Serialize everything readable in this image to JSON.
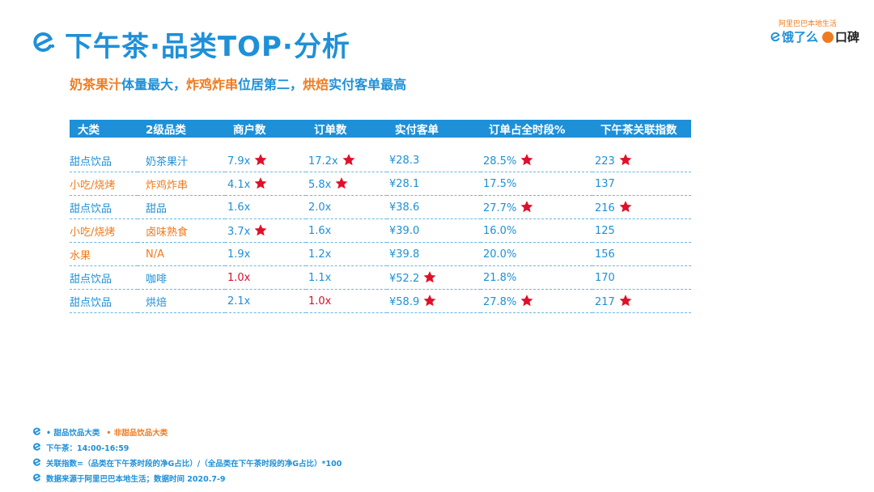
{
  "header": {
    "title": "下午茶·品类TOP·分析",
    "subtitle_parts": [
      {
        "text": "奶茶果汁",
        "color": "orange"
      },
      {
        "text": "体量最大，",
        "color": "blue"
      },
      {
        "text": "炸鸡炸串",
        "color": "orange"
      },
      {
        "text": "位居第二，",
        "color": "blue"
      },
      {
        "text": "烘焙",
        "color": "orange"
      },
      {
        "text": "实付客单最高",
        "color": "blue"
      }
    ]
  },
  "brand": {
    "tagline": "阿里巴巴本地生活",
    "ele_name": "饿了么",
    "koubei_name": "口碑"
  },
  "table": {
    "columns": [
      "大类",
      "2级品类",
      "商户数",
      "订单数",
      "实付客单",
      "订单占全时段%",
      "下午茶关联指数"
    ],
    "rows": [
      {
        "cells": [
          {
            "text": "甜点饮品",
            "color": "blue",
            "star": false
          },
          {
            "text": "奶茶果汁",
            "color": "blue",
            "star": false
          },
          {
            "text": "7.9x",
            "color": "blue",
            "star": true
          },
          {
            "text": "17.2x",
            "color": "blue",
            "star": true
          },
          {
            "text": "¥28.3",
            "color": "blue",
            "star": false
          },
          {
            "text": "28.5%",
            "color": "blue",
            "star": true
          },
          {
            "text": "223",
            "color": "blue",
            "star": true
          }
        ]
      },
      {
        "cells": [
          {
            "text": "小吃/烧烤",
            "color": "orange",
            "star": false
          },
          {
            "text": "炸鸡炸串",
            "color": "orange",
            "star": false
          },
          {
            "text": "4.1x",
            "color": "blue",
            "star": true
          },
          {
            "text": "5.8x",
            "color": "blue",
            "star": true
          },
          {
            "text": "¥28.1",
            "color": "blue",
            "star": false
          },
          {
            "text": "17.5%",
            "color": "blue",
            "star": false
          },
          {
            "text": "137",
            "color": "blue",
            "star": false
          }
        ]
      },
      {
        "cells": [
          {
            "text": "甜点饮品",
            "color": "blue",
            "star": false
          },
          {
            "text": "甜品",
            "color": "blue",
            "star": false
          },
          {
            "text": "1.6x",
            "color": "blue",
            "star": false
          },
          {
            "text": "2.0x",
            "color": "blue",
            "star": false
          },
          {
            "text": "¥38.6",
            "color": "blue",
            "star": false
          },
          {
            "text": "27.7%",
            "color": "blue",
            "star": true
          },
          {
            "text": "216",
            "color": "blue",
            "star": true
          }
        ]
      },
      {
        "cells": [
          {
            "text": "小吃/烧烤",
            "color": "orange",
            "star": false
          },
          {
            "text": "卤味熟食",
            "color": "orange",
            "star": false
          },
          {
            "text": "3.7x",
            "color": "blue",
            "star": true
          },
          {
            "text": "1.6x",
            "color": "blue",
            "star": false
          },
          {
            "text": "¥39.0",
            "color": "blue",
            "star": false
          },
          {
            "text": "16.0%",
            "color": "blue",
            "star": false
          },
          {
            "text": "125",
            "color": "blue",
            "star": false
          }
        ]
      },
      {
        "cells": [
          {
            "text": "水果",
            "color": "orange",
            "star": false
          },
          {
            "text": "N/A",
            "color": "orange",
            "star": false
          },
          {
            "text": "1.9x",
            "color": "blue",
            "star": false
          },
          {
            "text": "1.2x",
            "color": "blue",
            "star": false
          },
          {
            "text": "¥39.8",
            "color": "blue",
            "star": false
          },
          {
            "text": "20.0%",
            "color": "blue",
            "star": false
          },
          {
            "text": "156",
            "color": "blue",
            "star": false
          }
        ]
      },
      {
        "cells": [
          {
            "text": "甜点饮品",
            "color": "blue",
            "star": false
          },
          {
            "text": "咖啡",
            "color": "blue",
            "star": false
          },
          {
            "text": "1.0x",
            "color": "red",
            "star": false
          },
          {
            "text": "1.1x",
            "color": "blue",
            "star": false
          },
          {
            "text": "¥52.2",
            "color": "blue",
            "star": true
          },
          {
            "text": "21.8%",
            "color": "blue",
            "star": false
          },
          {
            "text": "170",
            "color": "blue",
            "star": false
          }
        ]
      },
      {
        "cells": [
          {
            "text": "甜点饮品",
            "color": "blue",
            "star": false
          },
          {
            "text": "烘焙",
            "color": "blue",
            "star": false
          },
          {
            "text": "2.1x",
            "color": "blue",
            "star": false
          },
          {
            "text": "1.0x",
            "color": "red",
            "star": false
          },
          {
            "text": "¥58.9",
            "color": "blue",
            "star": true
          },
          {
            "text": "27.8%",
            "color": "blue",
            "star": true
          },
          {
            "text": "217",
            "color": "blue",
            "star": true
          }
        ]
      }
    ]
  },
  "notes": {
    "legend_sweet": "• 甜品饮品大类",
    "legend_non_sweet": "• 非甜品饮品大类",
    "time": "下午茶：14:00-16:59",
    "index_def": "关联指数=（品类在下午茶时段的净G占比）/（全品类在下午茶时段的净G占比）*100",
    "source": "数据来源于阿里巴巴本地生活；数据时间 2020.7-9"
  },
  "colors": {
    "blue": "#1e90d8",
    "orange": "#f07b1e",
    "red": "#d8102b",
    "star": "#e0102a"
  },
  "icons": {
    "title_icon": "ele-e-logo-icon",
    "star_icon": "star-icon",
    "note_icon": "ele-e-logo-icon"
  }
}
